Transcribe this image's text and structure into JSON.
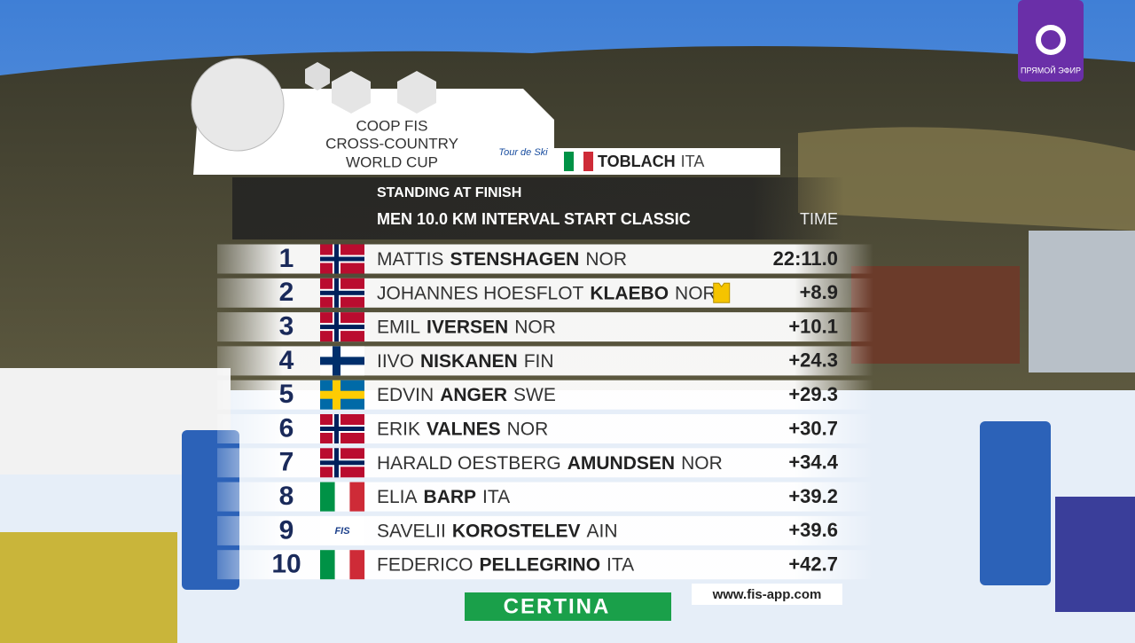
{
  "header": {
    "title_lines": [
      "COOP FIS",
      "CROSS-COUNTRY",
      "WORLD CUP"
    ],
    "event_logo": "Tour de Ski",
    "venue": "TOBLACH",
    "venue_nation": "ITA"
  },
  "channel": {
    "badge": "ПРЯМОЙ ЭФИР"
  },
  "results": {
    "subtitle": "STANDING AT FINISH",
    "race": "MEN 10.0 KM INTERVAL START CLASSIC",
    "time_header": "TIME",
    "rows": [
      {
        "rank": "1",
        "first": "MATTIS",
        "last": "STENSHAGEN",
        "nation": "NOR",
        "time": "22:11.0"
      },
      {
        "rank": "2",
        "first": "JOHANNES HOESFLOT",
        "last": "KLAEBO",
        "nation": "NOR",
        "time": "+8.9",
        "leader": true
      },
      {
        "rank": "3",
        "first": "EMIL",
        "last": "IVERSEN",
        "nation": "NOR",
        "time": "+10.1"
      },
      {
        "rank": "4",
        "first": "IIVO",
        "last": "NISKANEN",
        "nation": "FIN",
        "time": "+24.3"
      },
      {
        "rank": "5",
        "first": "EDVIN",
        "last": "ANGER",
        "nation": "SWE",
        "time": "+29.3"
      },
      {
        "rank": "6",
        "first": "ERIK",
        "last": "VALNES",
        "nation": "NOR",
        "time": "+30.7"
      },
      {
        "rank": "7",
        "first": "HARALD OESTBERG",
        "last": "AMUNDSEN",
        "nation": "NOR",
        "time": "+34.4"
      },
      {
        "rank": "8",
        "first": "ELIA",
        "last": "BARP",
        "nation": "ITA",
        "time": "+39.2"
      },
      {
        "rank": "9",
        "first": "SAVELII",
        "last": "KOROSTELEV",
        "nation": "AIN",
        "time": "+39.6",
        "flag_text": "FIS"
      },
      {
        "rank": "10",
        "first": "FEDERICO",
        "last": "PELLEGRINO",
        "nation": "ITA",
        "time": "+42.7"
      }
    ]
  },
  "footer": {
    "url": "www.fis-app.com",
    "sponsor": "CERTINA"
  }
}
